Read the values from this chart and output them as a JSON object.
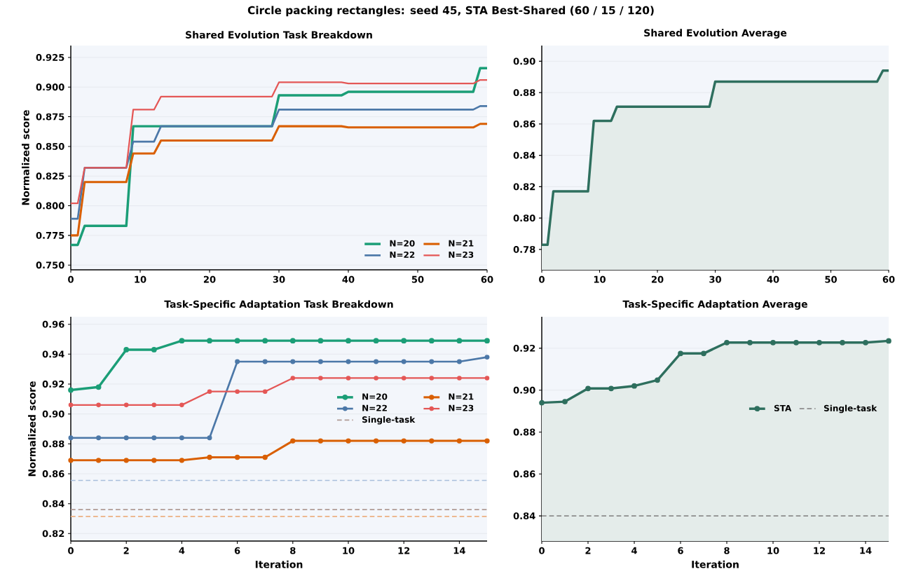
{
  "chart_data": [
    {
      "type": "other",
      "title": "Circle packing rectangles: seed 45, STA Best-Shared (60 / 15 / 120)"
    },
    {
      "type": "line",
      "title": "Shared Evolution Task Breakdown",
      "ylabel": "Normalized score",
      "xlim": [
        0,
        60
      ],
      "ylim": [
        0.746,
        0.935
      ],
      "xticks": [
        0,
        10,
        20,
        30,
        40,
        50,
        60
      ],
      "yticks": [
        {
          "value": 0.75,
          "label": "0.750"
        },
        {
          "value": 0.775,
          "label": "0.775"
        },
        {
          "value": 0.8,
          "label": "0.800"
        },
        {
          "value": 0.825,
          "label": "0.825"
        },
        {
          "value": 0.85,
          "label": "0.850"
        },
        {
          "value": 0.875,
          "label": "0.875"
        },
        {
          "value": 0.9,
          "label": "0.900"
        },
        {
          "value": 0.925,
          "label": "0.925"
        }
      ],
      "grid": "y",
      "legend": "bottom right",
      "marker": "none",
      "series": [
        {
          "name": "N=20",
          "color": "#1b9e77",
          "x": [
            0,
            1,
            2,
            8,
            9,
            29,
            30,
            39,
            40,
            58,
            59,
            60
          ],
          "values": [
            0.767,
            0.767,
            0.783,
            0.783,
            0.867,
            0.867,
            0.893,
            0.893,
            0.896,
            0.896,
            0.916,
            0.916
          ]
        },
        {
          "name": "N=21",
          "color": "#d95f02",
          "x": [
            0,
            1,
            2,
            8,
            9,
            12,
            13,
            29,
            30,
            39,
            40,
            58,
            59,
            60
          ],
          "values": [
            0.775,
            0.775,
            0.82,
            0.82,
            0.844,
            0.844,
            0.855,
            0.855,
            0.867,
            0.867,
            0.866,
            0.866,
            0.869,
            0.869
          ]
        },
        {
          "name": "N=22",
          "color": "#4c78a8",
          "x": [
            0,
            1,
            2,
            8,
            9,
            12,
            13,
            29,
            30,
            58,
            59,
            60
          ],
          "values": [
            0.789,
            0.789,
            0.832,
            0.832,
            0.854,
            0.854,
            0.867,
            0.867,
            0.881,
            0.881,
            0.884,
            0.884
          ]
        },
        {
          "name": "N=23",
          "color": "#e45756",
          "x": [
            0,
            1,
            2,
            8,
            9,
            12,
            13,
            29,
            30,
            39,
            40,
            58,
            59,
            60
          ],
          "values": [
            0.802,
            0.802,
            0.832,
            0.832,
            0.881,
            0.881,
            0.892,
            0.892,
            0.904,
            0.904,
            0.903,
            0.903,
            0.906,
            0.906
          ]
        }
      ]
    },
    {
      "type": "area",
      "title": "Shared Evolution Average",
      "xlim": [
        0,
        60
      ],
      "ylim": [
        0.767,
        0.91
      ],
      "xticks": [
        0,
        10,
        20,
        30,
        40,
        50,
        60
      ],
      "yticks": [
        {
          "value": 0.78,
          "label": "0.78"
        },
        {
          "value": 0.8,
          "label": "0.80"
        },
        {
          "value": 0.82,
          "label": "0.82"
        },
        {
          "value": 0.84,
          "label": "0.84"
        },
        {
          "value": 0.86,
          "label": "0.86"
        },
        {
          "value": 0.88,
          "label": "0.88"
        },
        {
          "value": 0.9,
          "label": "0.90"
        }
      ],
      "grid": "y",
      "marker": "none",
      "series": [
        {
          "color": "#2e6f5e",
          "x": [
            0,
            1,
            2,
            8,
            9,
            12,
            13,
            29,
            30,
            39,
            40,
            58,
            59,
            60
          ],
          "values": [
            0.783,
            0.783,
            0.817,
            0.817,
            0.862,
            0.862,
            0.871,
            0.871,
            0.887,
            0.887,
            0.887,
            0.887,
            0.894,
            0.894
          ]
        }
      ]
    },
    {
      "type": "line",
      "title": "Task-Specific Adaptation Task Breakdown",
      "xlabel": "Iteration",
      "ylabel": "Normalized score",
      "xlim": [
        0,
        15
      ],
      "ylim": [
        0.815,
        0.965
      ],
      "xticks": [
        0,
        2,
        4,
        6,
        8,
        10,
        12,
        14
      ],
      "yticks": [
        {
          "value": 0.82,
          "label": "0.82"
        },
        {
          "value": 0.84,
          "label": "0.84"
        },
        {
          "value": 0.86,
          "label": "0.86"
        },
        {
          "value": 0.88,
          "label": "0.88"
        },
        {
          "value": 0.9,
          "label": "0.90"
        },
        {
          "value": 0.92,
          "label": "0.92"
        },
        {
          "value": 0.94,
          "label": "0.94"
        },
        {
          "value": 0.96,
          "label": "0.96"
        }
      ],
      "grid": "y",
      "legend": "right",
      "marker": "circle",
      "x": [
        0,
        1,
        2,
        3,
        4,
        5,
        6,
        7,
        8,
        9,
        10,
        11,
        12,
        13,
        14,
        15
      ],
      "series": [
        {
          "name": "N=20",
          "color": "#1b9e77",
          "values": [
            0.916,
            0.918,
            0.943,
            0.943,
            0.949,
            0.949,
            0.949,
            0.949,
            0.949,
            0.949,
            0.949,
            0.949,
            0.949,
            0.949,
            0.949,
            0.949
          ]
        },
        {
          "name": "N=21",
          "color": "#d95f02",
          "values": [
            0.869,
            0.869,
            0.869,
            0.869,
            0.869,
            0.871,
            0.871,
            0.871,
            0.882,
            0.882,
            0.882,
            0.882,
            0.882,
            0.882,
            0.882,
            0.882
          ]
        },
        {
          "name": "N=22",
          "color": "#4c78a8",
          "values": [
            0.884,
            0.884,
            0.884,
            0.884,
            0.884,
            0.884,
            0.935,
            0.935,
            0.935,
            0.935,
            0.935,
            0.935,
            0.935,
            0.935,
            0.935,
            0.938
          ]
        },
        {
          "name": "N=23",
          "color": "#e45756",
          "values": [
            0.906,
            0.906,
            0.906,
            0.906,
            0.906,
            0.915,
            0.915,
            0.915,
            0.924,
            0.924,
            0.924,
            0.924,
            0.924,
            0.924,
            0.924,
            0.924
          ]
        }
      ],
      "ref_lines": [
        {
          "axis": "y",
          "value": 0.8555,
          "color": "#a9bfdc",
          "line_style": "dashed"
        },
        {
          "axis": "y",
          "value": 0.8315,
          "color": "#ecb081",
          "line_style": "dashed"
        },
        {
          "axis": "y",
          "value": 0.836,
          "color": "#b09a94",
          "line_style": "dashed",
          "label": "Single-task"
        }
      ]
    },
    {
      "type": "area",
      "title": "Task-Specific Adaptation Average",
      "xlabel": "Iteration",
      "xlim": [
        0,
        15
      ],
      "ylim": [
        0.828,
        0.935
      ],
      "xticks": [
        0,
        2,
        4,
        6,
        8,
        10,
        12,
        14
      ],
      "yticks": [
        {
          "value": 0.84,
          "label": "0.84"
        },
        {
          "value": 0.86,
          "label": "0.86"
        },
        {
          "value": 0.88,
          "label": "0.88"
        },
        {
          "value": 0.9,
          "label": "0.90"
        },
        {
          "value": 0.92,
          "label": "0.92"
        }
      ],
      "grid": "y",
      "legend": "right",
      "marker": "circle",
      "x": [
        0,
        1,
        2,
        3,
        4,
        5,
        6,
        7,
        8,
        9,
        10,
        11,
        12,
        13,
        14,
        15
      ],
      "ref_lines": [
        {
          "axis": "y",
          "value": 0.84,
          "color": "#8c8c8c",
          "line_style": "dashed",
          "label": "Single-task"
        }
      ],
      "series": [
        {
          "name": "STA",
          "color": "#2e6f5e",
          "values": [
            0.894,
            0.8945,
            0.9008,
            0.9008,
            0.902,
            0.9048,
            0.9175,
            0.9175,
            0.9227,
            0.9227,
            0.9227,
            0.9227,
            0.9227,
            0.9227,
            0.9227,
            0.9235
          ]
        }
      ]
    }
  ]
}
